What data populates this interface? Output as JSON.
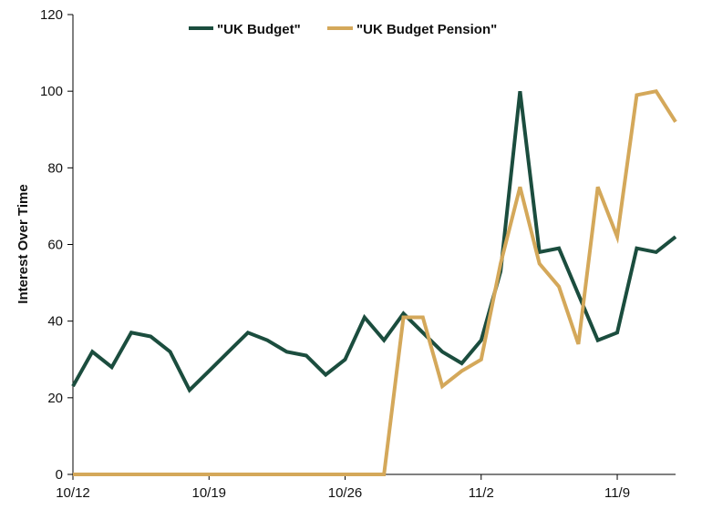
{
  "chart_data": {
    "type": "line",
    "title": "",
    "xlabel": "",
    "ylabel": "Interest Over Time",
    "ylim": [
      0,
      120
    ],
    "yticks": [
      "0",
      "20",
      "40",
      "60",
      "80",
      "100",
      "120"
    ],
    "xticks": [
      "10/12",
      "10/19",
      "10/26",
      "11/2",
      "11/9"
    ],
    "grid": false,
    "legend_position": "top",
    "x": [
      "10/12",
      "10/13",
      "10/14",
      "10/15",
      "10/16",
      "10/17",
      "10/18",
      "10/19",
      "10/20",
      "10/21",
      "10/22",
      "10/23",
      "10/24",
      "10/25",
      "10/26",
      "10/27",
      "10/28",
      "10/29",
      "10/30",
      "10/31",
      "11/1",
      "11/2",
      "11/3",
      "11/4",
      "11/5",
      "11/6",
      "11/7",
      "11/8",
      "11/9",
      "11/10",
      "11/11",
      "11/12"
    ],
    "series": [
      {
        "name": "\"UK Budget\"",
        "color": "#1b4d3e",
        "values": [
          23,
          32,
          28,
          37,
          36,
          32,
          22,
          27,
          32,
          37,
          35,
          32,
          31,
          26,
          30,
          41,
          35,
          42,
          37,
          32,
          29,
          35,
          53,
          100,
          58,
          59,
          47,
          35,
          37,
          59,
          58,
          62
        ]
      },
      {
        "name": "\"UK Budget Pension\"",
        "color": "#d4a85a",
        "values": [
          0,
          0,
          0,
          0,
          0,
          0,
          0,
          0,
          0,
          0,
          0,
          0,
          0,
          0,
          0,
          0,
          0,
          41,
          41,
          23,
          27,
          30,
          55,
          75,
          55,
          49,
          34,
          75,
          62,
          99,
          100,
          92
        ]
      }
    ]
  }
}
